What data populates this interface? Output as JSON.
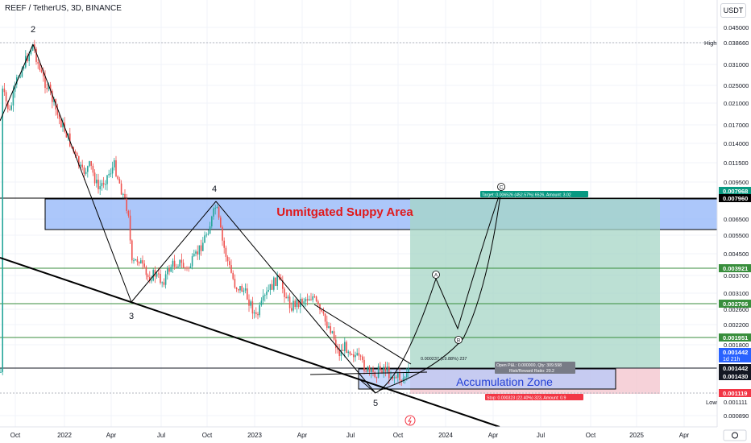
{
  "header": {
    "symbol_title": "REEF / TetherUS, 3D, BINANCE",
    "currency": "USDT"
  },
  "chart_data": {
    "type": "candlestick",
    "scale": "log",
    "grid": true,
    "x_ticks": [
      "Oct",
      "2022",
      "Apr",
      "Jul",
      "Oct",
      "2023",
      "Apr",
      "Jul",
      "Oct",
      "2024",
      "Apr",
      "Jul",
      "Oct",
      "2025",
      "Apr"
    ],
    "y_ticks": [
      "0.045000",
      "0.038660",
      "0.031000",
      "0.025000",
      "0.021000",
      "0.017000",
      "0.014000",
      "0.011500",
      "0.009500",
      "0.006500",
      "0.005500",
      "0.004500",
      "0.003700",
      "0.003100",
      "0.002600",
      "0.002200",
      "0.001800",
      "0.000890"
    ],
    "high_label": "High",
    "low_label": "Low",
    "wave_labels": [
      "2",
      "3",
      "4",
      "5"
    ],
    "projection_labels": [
      "A",
      "B",
      "C"
    ],
    "price_badges": [
      {
        "label": "0.007968",
        "color": "#089981"
      },
      {
        "label": "0.007960",
        "color": "#000000"
      },
      {
        "label": "0.003921",
        "color": "#388e3c"
      },
      {
        "label": "0.002766",
        "color": "#388e3c"
      },
      {
        "label": "0.001951",
        "color": "#388e3c"
      },
      {
        "label": "0.001442",
        "color": "#2962ff",
        "sub": "1d 21h"
      },
      {
        "label": "0.001442",
        "color": "#131722"
      },
      {
        "label": "0.001430",
        "color": "#131722"
      },
      {
        "label": "0.001119",
        "color": "#f23645"
      },
      {
        "label": "0.001111",
        "color": "#ffffff"
      }
    ],
    "high_value_text": "0.038660",
    "low_value_text": "0.001111",
    "zones": {
      "supply": "Unmitgated Suppy Area",
      "accumulation": "Accumulation Zone"
    },
    "annotations": {
      "target": "Target: 0.006526 (452.57%) 6526, Amount: 3.02",
      "stop": "Stop: 0.000323 (22.40%) 323, Amount: 0.9",
      "open_pnl": "Open P&L: 0.000000, Qty: 309.598",
      "risk_reward": "Risk/Reward Ratio: 20.2",
      "measure": "0.000237 (19.88%) 237"
    },
    "colors": {
      "up": "#26a69a",
      "down": "#ef5350",
      "supply_fill": "#90b4f8",
      "accum_fill": "#b2c8fb",
      "profit_fill": "#a5d6c5",
      "loss_fill": "#f4c7cf",
      "level_line": "#388e3c",
      "trend_line": "#000000"
    }
  }
}
